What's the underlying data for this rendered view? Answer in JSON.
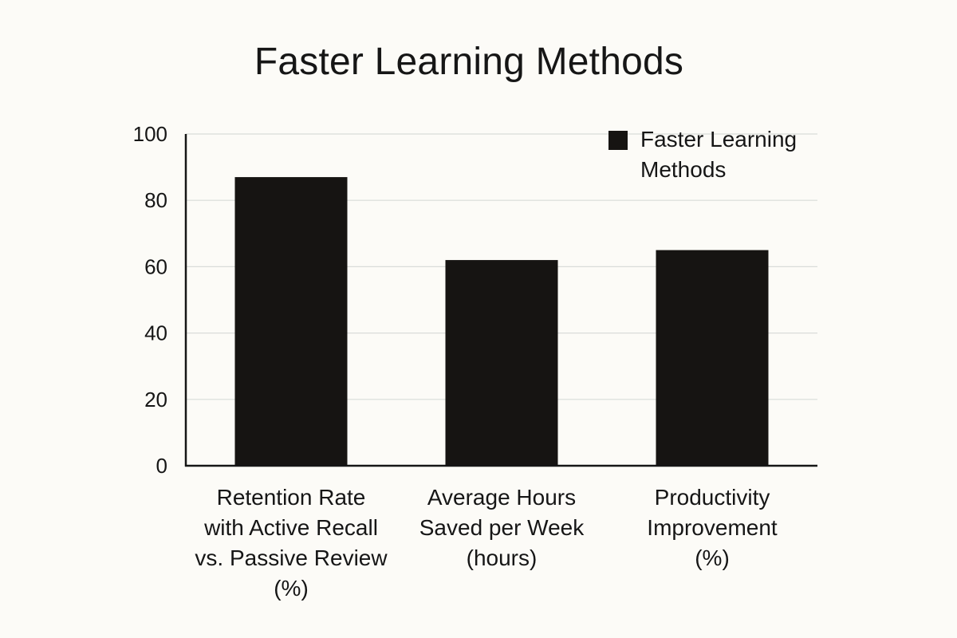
{
  "colors": {
    "background": "#fcfbf7",
    "bar": "#161412",
    "text": "#161616",
    "grid": "#d9dcd9"
  },
  "chart_data": {
    "type": "bar",
    "title": "Faster Learning Methods",
    "xlabel": "",
    "ylabel": "",
    "ylim": [
      0,
      100
    ],
    "yticks": [
      "0",
      "20",
      "40",
      "60",
      "80",
      "100"
    ],
    "grid": true,
    "legend": {
      "position": "top-right",
      "entries": [
        {
          "label_lines": [
            "Faster Learning",
            "Methods"
          ]
        }
      ]
    },
    "categories": [
      "Retention Rate with Active Recall vs. Passive Review (%)",
      "Average Hours Saved per Week (hours)",
      "Productivity Improvement (%)"
    ],
    "category_label_lines": [
      [
        "Retention Rate",
        "with Active Recall",
        "vs. Passive Review",
        "(%)"
      ],
      [
        "Average Hours",
        "Saved per Week",
        "(hours)"
      ],
      [
        "Productivity",
        "Improvement",
        "(%)"
      ]
    ],
    "series": [
      {
        "name": "Faster Learning Methods",
        "values": [
          87,
          62,
          65
        ]
      }
    ]
  }
}
